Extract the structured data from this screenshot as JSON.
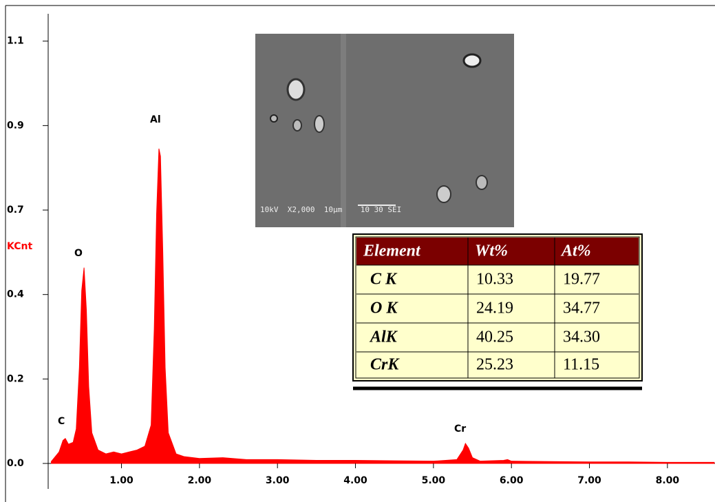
{
  "chart_data": {
    "type": "area",
    "y_label": "KCnt",
    "color": "#ff0000",
    "x": [
      0.1,
      0.2,
      0.25,
      0.28,
      0.32,
      0.38,
      0.42,
      0.46,
      0.49,
      0.52,
      0.55,
      0.58,
      0.62,
      0.7,
      0.8,
      0.9,
      1.0,
      1.1,
      1.2,
      1.3,
      1.38,
      1.42,
      1.45,
      1.48,
      1.5,
      1.53,
      1.56,
      1.6,
      1.7,
      1.8,
      2.0,
      2.3,
      2.6,
      3.0,
      3.5,
      4.0,
      4.5,
      5.0,
      5.3,
      5.38,
      5.41,
      5.45,
      5.5,
      5.6,
      5.9,
      5.95,
      6.0,
      6.5,
      7.0,
      7.5,
      8.0,
      8.6
    ],
    "values": [
      0.005,
      0.03,
      0.06,
      0.065,
      0.05,
      0.055,
      0.09,
      0.25,
      0.45,
      0.51,
      0.4,
      0.2,
      0.08,
      0.035,
      0.025,
      0.03,
      0.025,
      0.03,
      0.035,
      0.045,
      0.1,
      0.35,
      0.65,
      0.82,
      0.8,
      0.55,
      0.25,
      0.08,
      0.025,
      0.018,
      0.013,
      0.015,
      0.01,
      0.01,
      0.008,
      0.008,
      0.007,
      0.006,
      0.01,
      0.035,
      0.052,
      0.04,
      0.015,
      0.006,
      0.008,
      0.01,
      0.006,
      0.005,
      0.004,
      0.004,
      0.003,
      0.003
    ],
    "xlim": [
      0.06,
      8.61
    ],
    "ylim": [
      0,
      1.13
    ],
    "xticks": [
      {
        "value": 1,
        "label": "1.00"
      },
      {
        "value": 2,
        "label": "2.00"
      },
      {
        "value": 3,
        "label": "3.00"
      },
      {
        "value": 4,
        "label": "4.00"
      },
      {
        "value": 5,
        "label": "5.00"
      },
      {
        "value": 6,
        "label": "6.00"
      },
      {
        "value": 7,
        "label": "7.00"
      },
      {
        "value": 8,
        "label": "8.00"
      }
    ],
    "yticks": [
      {
        "value": 0,
        "label": "0.0"
      },
      {
        "value": 0.22,
        "label": "0.2"
      },
      {
        "value": 0.44,
        "label": "0.4"
      },
      {
        "value": 0.66,
        "label": "0.7"
      },
      {
        "value": 0.88,
        "label": "0.9"
      },
      1.1
    ],
    "annotations": [
      "C",
      "O",
      "Al",
      "Cr"
    ]
  },
  "inset_image_label": "10kV  X2,000  10µm    10 30 SEI",
  "table": {
    "header": [
      "Element",
      "Wt%",
      "At%"
    ],
    "rows": [
      [
        "C K",
        "10.33",
        "19.77"
      ],
      [
        "O K",
        "24.19",
        "34.77"
      ],
      [
        "AlK",
        "40.25",
        "34.30"
      ],
      [
        "CrK",
        "25.23",
        "11.15"
      ]
    ]
  }
}
